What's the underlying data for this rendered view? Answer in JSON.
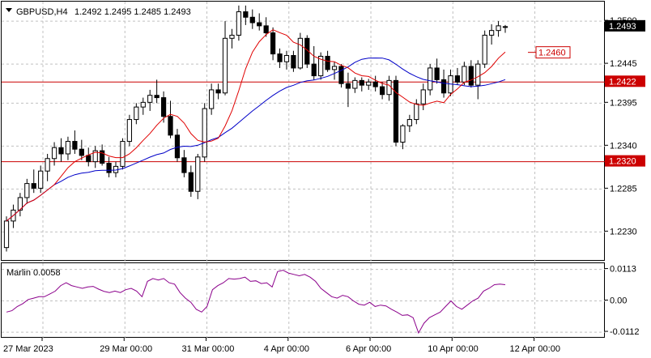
{
  "header": {
    "symbol_label": "GBPUSD,H4",
    "ohlc_values": "1.2492 1.2495 1.2485 1.2493",
    "dropdown_icon": "triangle-down-icon"
  },
  "indicator": {
    "label": "Marlin 0.0058",
    "axis_ticks": [
      "0.0113",
      "0.00",
      "-0.0112"
    ]
  },
  "colors": {
    "bull_body": "#ffffff",
    "bear_body": "#000000",
    "ma_fast": "#e00000",
    "ma_slow": "#0000c8",
    "level_line": "#cc0000",
    "oscillator": "#8b008b",
    "grid": "#c0c0c0",
    "current_price_bg": "#000000"
  },
  "chart_data": [
    {
      "type": "candlestick",
      "title": "GBPUSD,H4",
      "ylim": [
        1.2192,
        1.2525
      ],
      "y_ticks": [
        "1.2500",
        "1.2445",
        "1.2395",
        "1.2340",
        "1.2285",
        "1.2230"
      ],
      "x_ticks": [
        "27 Mar 2023",
        "29 Mar 00:00",
        "31 Mar 00:00",
        "4 Apr 00:00",
        "6 Apr 00:00",
        "10 Apr 00:00",
        "12 Apr 00:00"
      ],
      "current_price": "1.2493",
      "horizontal_levels": [
        {
          "value": 1.2422,
          "label": "1.2422"
        },
        {
          "value": 1.232,
          "label": "1.2320"
        }
      ],
      "target_marker": {
        "value": 1.246,
        "label": "1.2460"
      },
      "candles": [
        [
          1.221,
          1.225,
          1.2205,
          1.2244
        ],
        [
          1.2244,
          1.2265,
          1.2235,
          1.2258
        ],
        [
          1.2258,
          1.228,
          1.225,
          1.2274
        ],
        [
          1.2274,
          1.2298,
          1.2266,
          1.2292
        ],
        [
          1.2292,
          1.231,
          1.228,
          1.2286
        ],
        [
          1.2286,
          1.2315,
          1.228,
          1.2308
        ],
        [
          1.2308,
          1.233,
          1.2295,
          1.2324
        ],
        [
          1.2324,
          1.2345,
          1.2315,
          1.2338
        ],
        [
          1.2338,
          1.235,
          1.232,
          1.233
        ],
        [
          1.233,
          1.2352,
          1.2322,
          1.2346
        ],
        [
          1.2346,
          1.236,
          1.233,
          1.2336
        ],
        [
          1.2336,
          1.2348,
          1.2322,
          1.2328
        ],
        [
          1.2328,
          1.2338,
          1.2314,
          1.232
        ],
        [
          1.232,
          1.234,
          1.2312,
          1.2334
        ],
        [
          1.2334,
          1.2342,
          1.2315,
          1.2318
        ],
        [
          1.2318,
          1.2326,
          1.23,
          1.2306
        ],
        [
          1.2306,
          1.232,
          1.23,
          1.2314
        ],
        [
          1.2314,
          1.235,
          1.231,
          1.2346
        ],
        [
          1.2346,
          1.238,
          1.234,
          1.2374
        ],
        [
          1.2374,
          1.2395,
          1.2368,
          1.239
        ],
        [
          1.239,
          1.2402,
          1.238,
          1.2396
        ],
        [
          1.2396,
          1.2412,
          1.2385,
          1.2405
        ],
        [
          1.2405,
          1.2425,
          1.2395,
          1.2402
        ],
        [
          1.2402,
          1.241,
          1.237,
          1.2378
        ],
        [
          1.2378,
          1.2398,
          1.235,
          1.2354
        ],
        [
          1.2354,
          1.2362,
          1.232,
          1.2325
        ],
        [
          1.2325,
          1.2335,
          1.23,
          1.2306
        ],
        [
          1.2306,
          1.2315,
          1.2275,
          1.2282
        ],
        [
          1.2282,
          1.233,
          1.2272,
          1.2326
        ],
        [
          1.2326,
          1.2395,
          1.232,
          1.2388
        ],
        [
          1.2388,
          1.242,
          1.238,
          1.2412
        ],
        [
          1.2412,
          1.242,
          1.24,
          1.2408
        ],
        [
          1.2408,
          1.25,
          1.2405,
          1.2478
        ],
        [
          1.2478,
          1.249,
          1.2465,
          1.2482
        ],
        [
          1.2482,
          1.252,
          1.2475,
          1.2512
        ],
        [
          1.2512,
          1.252,
          1.2495,
          1.2505
        ],
        [
          1.2505,
          1.2515,
          1.249,
          1.2498
        ],
        [
          1.2498,
          1.251,
          1.2488,
          1.2494
        ],
        [
          1.2494,
          1.2505,
          1.248,
          1.2485
        ],
        [
          1.2485,
          1.2492,
          1.245,
          1.2458
        ],
        [
          1.2458,
          1.2465,
          1.244,
          1.2448
        ],
        [
          1.2448,
          1.2462,
          1.2438,
          1.2456
        ],
        [
          1.2456,
          1.2462,
          1.2435,
          1.244
        ],
        [
          1.244,
          1.2485,
          1.2438,
          1.2478
        ],
        [
          1.2478,
          1.2482,
          1.244,
          1.2445
        ],
        [
          1.2445,
          1.2468,
          1.2425,
          1.243
        ],
        [
          1.243,
          1.246,
          1.2425,
          1.2455
        ],
        [
          1.2455,
          1.2462,
          1.2435,
          1.2438
        ],
        [
          1.2438,
          1.2448,
          1.2425,
          1.2442
        ],
        [
          1.2442,
          1.2445,
          1.2415,
          1.242
        ],
        [
          1.242,
          1.2434,
          1.239,
          1.2414
        ],
        [
          1.2414,
          1.2428,
          1.2408,
          1.2424
        ],
        [
          1.2424,
          1.2428,
          1.241,
          1.2418
        ],
        [
          1.2418,
          1.2426,
          1.2412,
          1.2422
        ],
        [
          1.2422,
          1.243,
          1.241,
          1.2416
        ],
        [
          1.2416,
          1.2422,
          1.24,
          1.2406
        ],
        [
          1.2406,
          1.243,
          1.2398,
          1.2424
        ],
        [
          1.2424,
          1.243,
          1.234,
          1.2345
        ],
        [
          1.2345,
          1.2368,
          1.2336,
          1.2366
        ],
        [
          1.2366,
          1.238,
          1.2358,
          1.2374
        ],
        [
          1.2374,
          1.24,
          1.2368,
          1.2394
        ],
        [
          1.2394,
          1.242,
          1.2386,
          1.2412
        ],
        [
          1.2412,
          1.2445,
          1.2405,
          1.244
        ],
        [
          1.244,
          1.2452,
          1.242,
          1.2425
        ],
        [
          1.2425,
          1.2438,
          1.2402,
          1.2408
        ],
        [
          1.2408,
          1.2438,
          1.2404,
          1.243
        ],
        [
          1.243,
          1.244,
          1.2418,
          1.2422
        ],
        [
          1.2422,
          1.2448,
          1.2418,
          1.2442
        ],
        [
          1.2442,
          1.245,
          1.2415,
          1.2418
        ],
        [
          1.2418,
          1.245,
          1.24,
          1.2445
        ],
        [
          1.2445,
          1.2488,
          1.244,
          1.2482
        ],
        [
          1.2482,
          1.2496,
          1.247,
          1.2488
        ],
        [
          1.2488,
          1.25,
          1.248,
          1.2494
        ],
        [
          1.2492,
          1.2495,
          1.2485,
          1.2493
        ]
      ]
    },
    {
      "type": "line",
      "title": "Marlin 0.0058",
      "ylim": [
        -0.0135,
        0.0135
      ],
      "y_ticks": [
        0.0113,
        0.0,
        -0.0112
      ],
      "values": [
        -0.004,
        -0.0035,
        -0.002,
        -0.001,
        0.0005,
        0.001,
        0.0015,
        0.0015,
        0.0025,
        0.0035,
        0.0055,
        0.0065,
        0.0055,
        0.005,
        0.0045,
        0.005,
        0.0052,
        0.0042,
        0.0034,
        0.003,
        0.0035,
        0.003,
        0.004,
        0.0045,
        0.0035,
        0.0015,
        0.007,
        0.008,
        0.0075,
        0.008,
        0.0065,
        0.006,
        0.003,
        0.001,
        -0.0005,
        -0.003,
        -0.004,
        -0.002,
        0.004,
        0.0055,
        0.0065,
        0.008,
        0.0078,
        0.008,
        0.0085,
        0.007,
        0.0072,
        0.0062,
        0.0065,
        0.005,
        0.0105,
        0.011,
        0.01,
        0.0095,
        0.009,
        0.0095,
        0.0085,
        0.007,
        0.0045,
        0.003,
        0.0015,
        0.001,
        0.002,
        0.0015,
        0.0,
        -0.0012,
        -0.0015,
        -0.0005,
        -0.002,
        -0.0015,
        -0.0018,
        -0.003,
        -0.004,
        -0.0052,
        -0.005,
        -0.006,
        -0.0115,
        -0.008,
        -0.006,
        -0.005,
        -0.004,
        -0.002,
        0.0,
        -0.002,
        -0.003,
        -0.0015,
        0.0,
        0.001,
        0.0035,
        0.0045,
        0.0058,
        0.006,
        0.0058
      ]
    }
  ]
}
